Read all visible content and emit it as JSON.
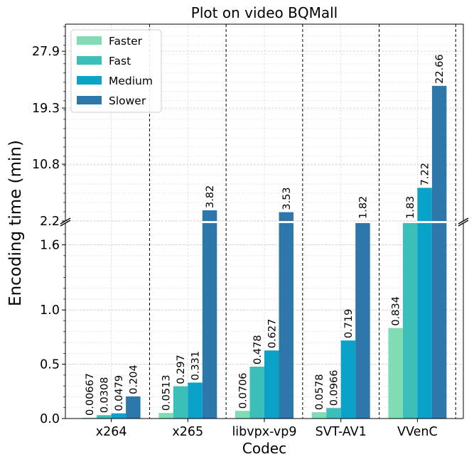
{
  "chart_data": {
    "type": "bar",
    "title": "Plot on video BQMall",
    "xlabel": "Codec",
    "ylabel": "Encoding time (min)",
    "categories": [
      "x264",
      "x265",
      "libvpx-vp9",
      "SVT-AV1",
      "VVenC"
    ],
    "series": [
      {
        "name": "Faster",
        "color": "#7fdcb4",
        "values": [
          0.00667,
          0.0513,
          0.0706,
          0.0578,
          0.834
        ],
        "labels": [
          "0.00667",
          "0.0513",
          "0.0706",
          "0.0578",
          "0.834"
        ]
      },
      {
        "name": "Fast",
        "color": "#3bbfb8",
        "values": [
          0.0308,
          0.297,
          0.478,
          0.0966,
          1.83
        ],
        "labels": [
          "0.0308",
          "0.297",
          "0.478",
          "0.0966",
          "1.83"
        ]
      },
      {
        "name": "Medium",
        "color": "#0aa2c9",
        "values": [
          0.0479,
          0.331,
          0.627,
          0.719,
          7.22
        ],
        "labels": [
          "0.0479",
          "0.331",
          "0.627",
          "0.719",
          "7.22"
        ]
      },
      {
        "name": "Slower",
        "color": "#2e77aa",
        "values": [
          0.204,
          3.82,
          3.53,
          1.82,
          22.66
        ],
        "labels": [
          "0.204",
          "3.82",
          "3.53",
          "1.82",
          "22.66"
        ]
      }
    ],
    "y_axis_broken": true,
    "lower_ylim": [
      0,
      1.8
    ],
    "lower_yticks": [
      "0.0",
      "0.5",
      "1.0",
      "1.6"
    ],
    "lower_ytick_values": [
      0,
      0.5,
      1.0,
      1.6
    ],
    "upper_ylim": [
      2.2,
      32
    ],
    "upper_yticks": [
      "2.2",
      "10.8",
      "19.3",
      "27.9"
    ],
    "upper_ytick_values": [
      2.2,
      10.8,
      19.3,
      27.9
    ],
    "grid": true,
    "legend_position": "top-left"
  }
}
